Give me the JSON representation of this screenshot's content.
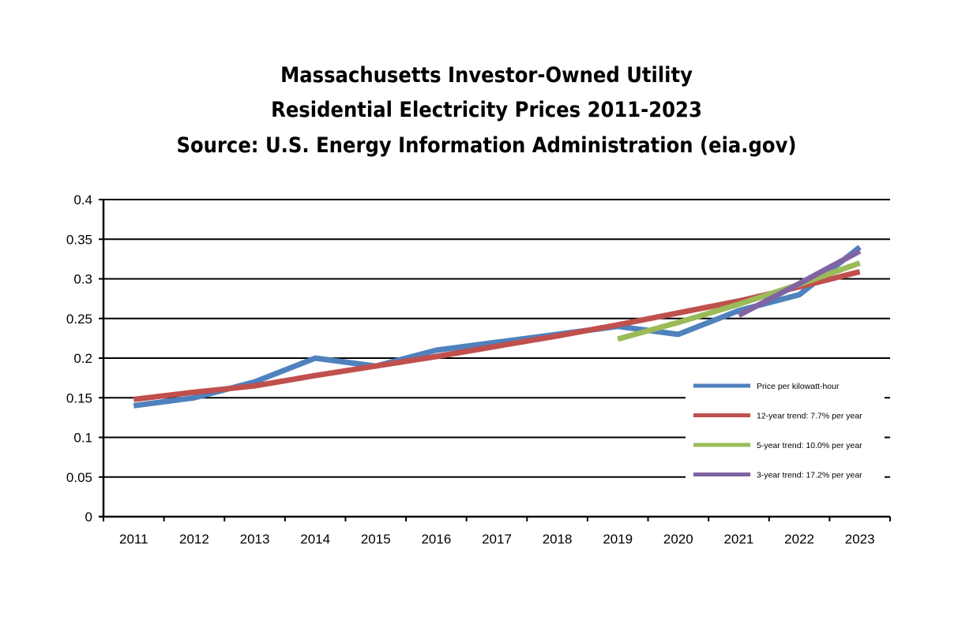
{
  "chart_data": {
    "type": "line",
    "title_lines": [
      "Massachusetts Investor-Owned Utility",
      "Residential Electricity Prices 2011-2023",
      "Source: U.S. Energy Information Administration (eia.gov)"
    ],
    "xlabel": "",
    "ylabel": "",
    "categories": [
      "2011",
      "2012",
      "2013",
      "2014",
      "2015",
      "2016",
      "2017",
      "2018",
      "2019",
      "2020",
      "2021",
      "2022",
      "2023"
    ],
    "ylim": [
      0,
      0.4
    ],
    "yticks": [
      "0",
      "0.05",
      "0.1",
      "0.15",
      "0.2",
      "0.25",
      "0.3",
      "0.35",
      "0.4"
    ],
    "grid": true,
    "legend_position": "bottom-right",
    "series": [
      {
        "name": "Price per kilowatt-hour",
        "color": "#4f81bd",
        "values": [
          0.14,
          0.15,
          0.17,
          0.2,
          0.19,
          0.21,
          0.22,
          0.23,
          0.24,
          0.23,
          0.26,
          0.28,
          0.34
        ]
      },
      {
        "name": "12-year trend: 7.7% per year",
        "color": "#c0504d",
        "values": [
          0.148,
          0.157,
          0.165,
          0.178,
          0.19,
          0.202,
          0.215,
          0.228,
          0.242,
          0.257,
          0.272,
          0.29,
          0.309
        ]
      },
      {
        "name": "5-year trend: 10.0% per year",
        "color": "#9bbb59",
        "values": [
          null,
          null,
          null,
          null,
          null,
          null,
          null,
          null,
          0.224,
          0.245,
          0.268,
          0.293,
          0.32
        ]
      },
      {
        "name": "3-year trend: 17.2% per year",
        "color": "#8064a2",
        "values": [
          null,
          null,
          null,
          null,
          null,
          null,
          null,
          null,
          null,
          null,
          0.254,
          0.294,
          0.335
        ]
      }
    ]
  }
}
